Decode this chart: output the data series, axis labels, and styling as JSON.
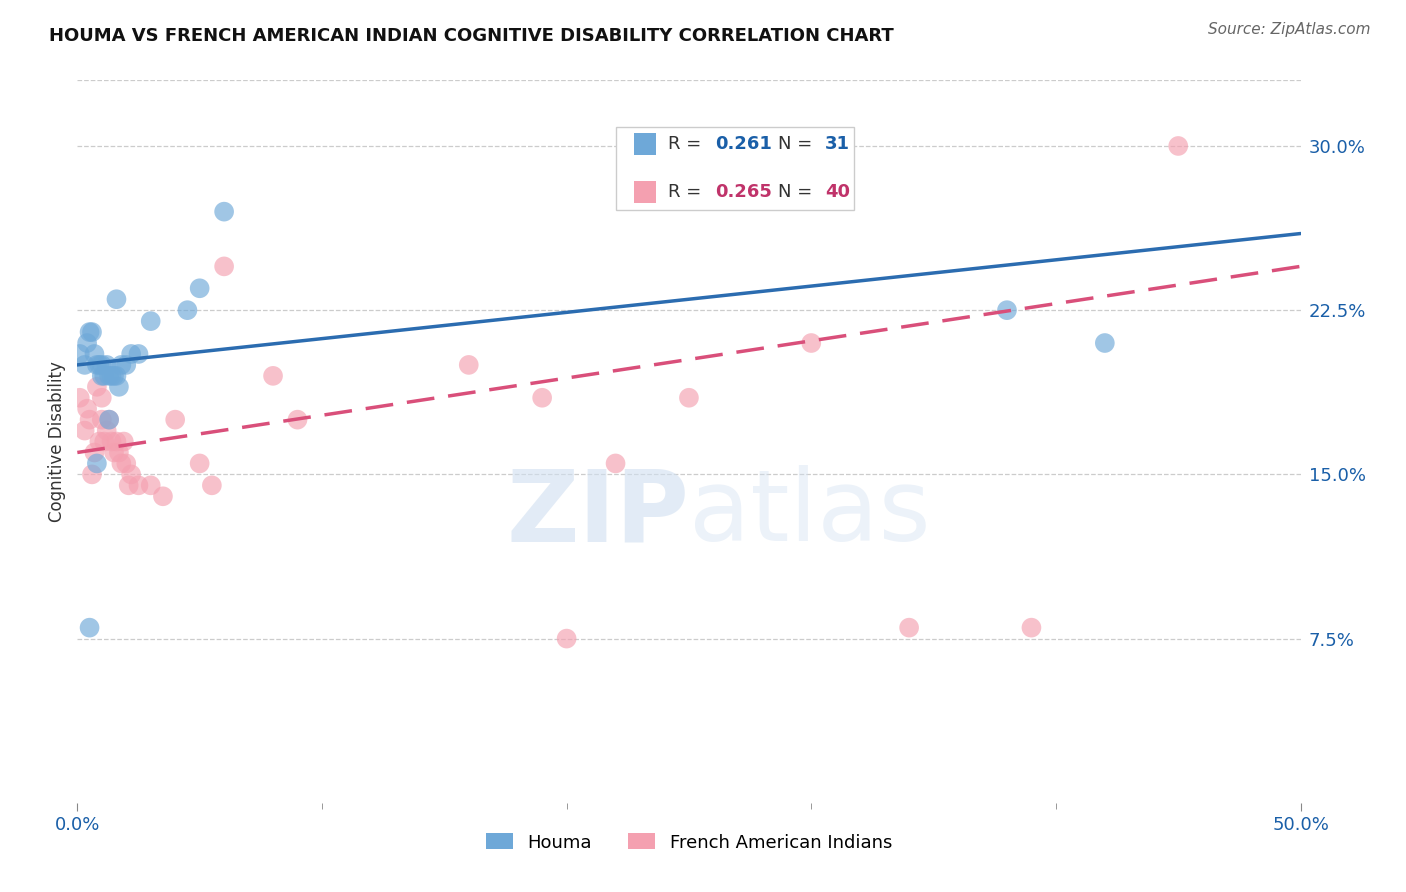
{
  "title": "HOUMA VS FRENCH AMERICAN INDIAN COGNITIVE DISABILITY CORRELATION CHART",
  "source": "Source: ZipAtlas.com",
  "ylabel": "Cognitive Disability",
  "xmin": 0.0,
  "xmax": 0.5,
  "ymin": 0.0,
  "ymax": 0.33,
  "ytick_positions": [
    0.075,
    0.15,
    0.225,
    0.3
  ],
  "ytick_labels": [
    "7.5%",
    "15.0%",
    "22.5%",
    "30.0%"
  ],
  "houma_R": 0.261,
  "houma_N": 31,
  "french_R": 0.265,
  "french_N": 40,
  "houma_color": "#6ea8d8",
  "french_color": "#f4a0b0",
  "houma_line_color": "#2b6cb0",
  "french_line_color": "#d94f7a",
  "houma_x": [
    0.001,
    0.003,
    0.004,
    0.005,
    0.006,
    0.007,
    0.008,
    0.009,
    0.01,
    0.01,
    0.011,
    0.012,
    0.013,
    0.014,
    0.015,
    0.016,
    0.017,
    0.018,
    0.02,
    0.022,
    0.025,
    0.03,
    0.045,
    0.05,
    0.06,
    0.38,
    0.42,
    0.005,
    0.008,
    0.013,
    0.016
  ],
  "houma_y": [
    0.205,
    0.2,
    0.21,
    0.215,
    0.215,
    0.205,
    0.2,
    0.2,
    0.2,
    0.195,
    0.195,
    0.2,
    0.195,
    0.195,
    0.195,
    0.195,
    0.19,
    0.2,
    0.2,
    0.205,
    0.205,
    0.22,
    0.225,
    0.235,
    0.27,
    0.225,
    0.21,
    0.08,
    0.155,
    0.175,
    0.23
  ],
  "french_x": [
    0.001,
    0.003,
    0.004,
    0.005,
    0.006,
    0.007,
    0.008,
    0.009,
    0.01,
    0.01,
    0.011,
    0.012,
    0.013,
    0.014,
    0.015,
    0.016,
    0.017,
    0.018,
    0.019,
    0.02,
    0.021,
    0.022,
    0.025,
    0.03,
    0.035,
    0.04,
    0.05,
    0.055,
    0.06,
    0.08,
    0.09,
    0.16,
    0.19,
    0.2,
    0.22,
    0.25,
    0.3,
    0.34,
    0.39,
    0.45
  ],
  "french_y": [
    0.185,
    0.17,
    0.18,
    0.175,
    0.15,
    0.16,
    0.19,
    0.165,
    0.175,
    0.185,
    0.165,
    0.17,
    0.175,
    0.165,
    0.16,
    0.165,
    0.16,
    0.155,
    0.165,
    0.155,
    0.145,
    0.15,
    0.145,
    0.145,
    0.14,
    0.175,
    0.155,
    0.145,
    0.245,
    0.195,
    0.175,
    0.2,
    0.185,
    0.075,
    0.155,
    0.185,
    0.21,
    0.08,
    0.08,
    0.3
  ],
  "blue_line_y0": 0.2,
  "blue_line_y1": 0.26,
  "pink_line_y0": 0.16,
  "pink_line_y1": 0.245
}
